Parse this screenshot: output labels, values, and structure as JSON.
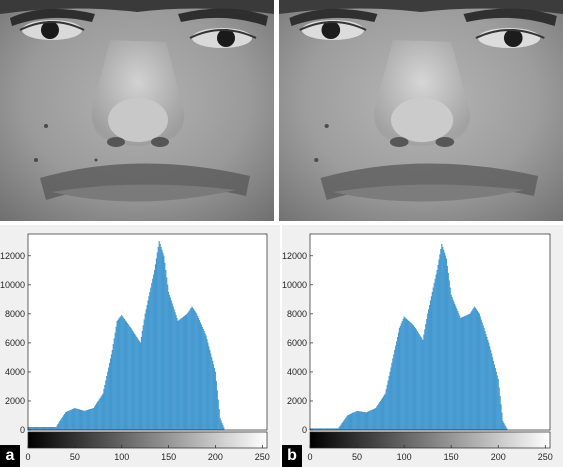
{
  "panels": [
    {
      "label": "a"
    },
    {
      "label": "b"
    }
  ],
  "colors": {
    "bar": "#4ea6dc",
    "bar_edge": "#1f77b4",
    "axis": "#262626",
    "plot_bg": "#ffffff",
    "figure_bg": "#f0f0f0"
  },
  "chart_data": [
    {
      "type": "bar",
      "panel": "a",
      "xlim": [
        0,
        255
      ],
      "ylim": [
        0,
        13500
      ],
      "x_ticks": [
        0,
        50,
        100,
        150,
        200,
        250
      ],
      "y_ticks": [
        0,
        2000,
        4000,
        6000,
        8000,
        10000,
        12000
      ],
      "colorbar": "grayscale 0 to 255",
      "grid": false,
      "x": [
        30,
        40,
        50,
        60,
        70,
        80,
        90,
        95,
        100,
        110,
        120,
        125,
        130,
        135,
        140,
        145,
        150,
        160,
        170,
        175,
        180,
        190,
        200,
        205,
        210
      ],
      "values": [
        200,
        1200,
        1500,
        1300,
        1500,
        2500,
        5500,
        7500,
        7900,
        7000,
        6000,
        8000,
        9500,
        11000,
        13000,
        12000,
        9500,
        7500,
        8000,
        8500,
        8000,
        6500,
        4000,
        800,
        0
      ]
    },
    {
      "type": "bar",
      "panel": "b",
      "xlim": [
        0,
        255
      ],
      "ylim": [
        0,
        13500
      ],
      "x_ticks": [
        0,
        50,
        100,
        150,
        200,
        250
      ],
      "y_ticks": [
        0,
        2000,
        4000,
        6000,
        8000,
        10000,
        12000
      ],
      "colorbar": "grayscale 0 to 255",
      "grid": false,
      "x": [
        30,
        40,
        50,
        60,
        70,
        80,
        90,
        95,
        100,
        110,
        120,
        125,
        130,
        135,
        140,
        145,
        150,
        160,
        170,
        175,
        180,
        190,
        200,
        205,
        210
      ],
      "values": [
        100,
        1000,
        1300,
        1200,
        1500,
        2500,
        5500,
        7000,
        7800,
        7200,
        6200,
        8000,
        9500,
        11000,
        12800,
        11800,
        9300,
        7700,
        8000,
        8500,
        8000,
        6000,
        3500,
        600,
        0
      ]
    }
  ]
}
